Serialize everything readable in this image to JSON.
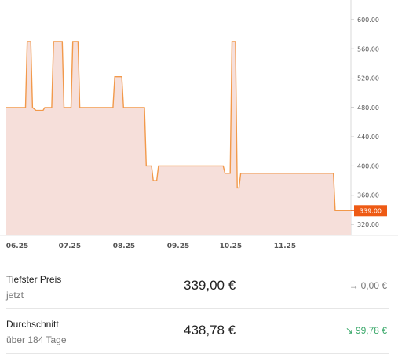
{
  "chart_data": {
    "type": "area",
    "y_ticks": [
      "600.00",
      "560.00",
      "520.00",
      "480.00",
      "440.00",
      "400.00",
      "360.00",
      "320.00"
    ],
    "x_ticks": [
      "06.25",
      "07.25",
      "08.25",
      "09.25",
      "10.25",
      "11.25"
    ],
    "ylim": [
      310,
      620
    ],
    "current_label": "339.00",
    "current_value": 339,
    "x": [
      "2025-06-01",
      "2025-06-12",
      "2025-06-13",
      "2025-06-15",
      "2025-06-16",
      "2025-06-18",
      "2025-06-22",
      "2025-06-23",
      "2025-06-27",
      "2025-06-28",
      "2025-07-03",
      "2025-07-04",
      "2025-07-08",
      "2025-07-09",
      "2025-07-12",
      "2025-07-13",
      "2025-07-15",
      "2025-07-16",
      "2025-07-18",
      "2025-07-19",
      "2025-08-01",
      "2025-08-02",
      "2025-08-06",
      "2025-08-07",
      "2025-08-19",
      "2025-08-20",
      "2025-08-23",
      "2025-08-24",
      "2025-08-26",
      "2025-08-27",
      "2025-10-03",
      "2025-10-04",
      "2025-10-07",
      "2025-10-08",
      "2025-10-10",
      "2025-10-11",
      "2025-10-12",
      "2025-10-13",
      "2025-12-05",
      "2025-12-06",
      "2025-12-15"
    ],
    "y": [
      480,
      480,
      570,
      570,
      480,
      476,
      476,
      480,
      480,
      570,
      570,
      480,
      480,
      570,
      570,
      480,
      480,
      480,
      480,
      480,
      480,
      522,
      522,
      480,
      480,
      400,
      400,
      380,
      380,
      400,
      400,
      390,
      390,
      570,
      570,
      370,
      370,
      390,
      390,
      339,
      339
    ],
    "area_color": "#f6dfda",
    "line_color": "#f2994a",
    "label_bg": "#ee5a14"
  },
  "stats": [
    {
      "title": "Tiefster Preis",
      "subtitle": "jetzt",
      "value": "339,00 €",
      "change": "0,00 €",
      "direction": "flat",
      "arrow_icon": "arrow-right-icon",
      "arrow_glyph": "→"
    },
    {
      "title": "Durchschnitt",
      "subtitle": "über 184 Tage",
      "value": "438,78 €",
      "change": "99,78 €",
      "direction": "down",
      "arrow_icon": "arrow-down-right-icon",
      "arrow_glyph": "↘"
    }
  ]
}
